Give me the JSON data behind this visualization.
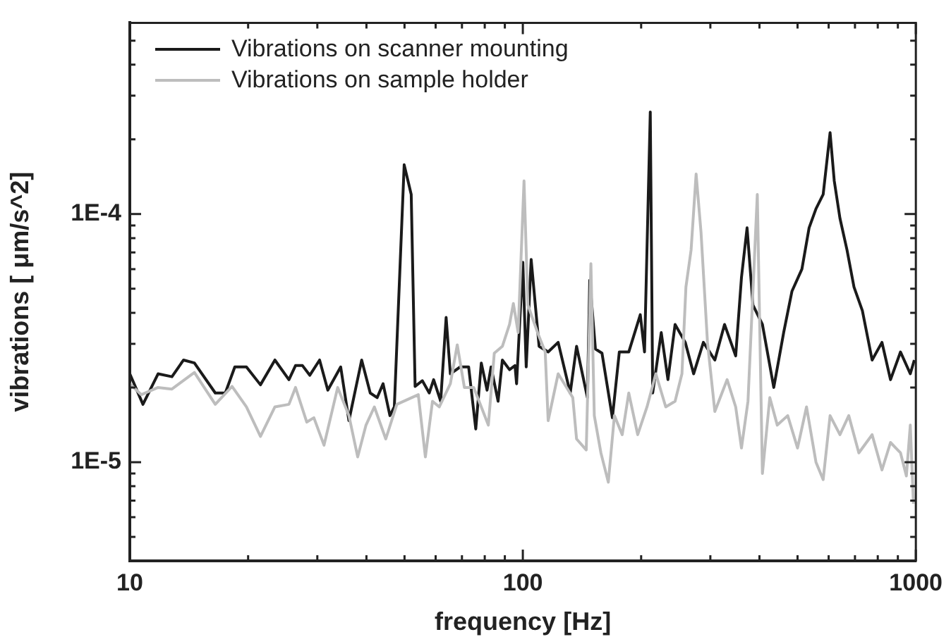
{
  "chart_data": {
    "type": "line",
    "xlabel": "frequency [Hz]",
    "ylabel": "vibrations [ μm/s^2]",
    "log": "xy",
    "grid": false,
    "legend": "top left",
    "marker": "none",
    "line_style": "solid",
    "xlim": [
      10,
      1000
    ],
    "ylim": [
      4e-06,
      0.00059
    ],
    "xticks": [
      10,
      {
        "value": 20,
        "label": null
      },
      {
        "value": 30,
        "label": null
      },
      {
        "value": 40,
        "label": null
      },
      {
        "value": 50,
        "label": null
      },
      {
        "value": 60,
        "label": null
      },
      {
        "value": 70,
        "label": null
      },
      {
        "value": 80,
        "label": null
      },
      {
        "value": 90,
        "label": null
      },
      100,
      {
        "value": 200,
        "label": null
      },
      {
        "value": 300,
        "label": null
      },
      {
        "value": 400,
        "label": null
      },
      {
        "value": 500,
        "label": null
      },
      {
        "value": 600,
        "label": null
      },
      {
        "value": 700,
        "label": null
      },
      {
        "value": 800,
        "label": null
      },
      {
        "value": 900,
        "label": null
      },
      1000
    ],
    "yticks": [
      {
        "value": 5e-06,
        "label": null
      },
      {
        "value": 6e-06,
        "label": null
      },
      {
        "value": 7e-06,
        "label": null
      },
      {
        "value": 8e-06,
        "label": null
      },
      {
        "value": 9e-06,
        "label": null
      },
      {
        "value": 1e-05,
        "label": "1E-5"
      },
      {
        "value": 2e-05,
        "label": null
      },
      {
        "value": 3e-05,
        "label": null
      },
      {
        "value": 4e-05,
        "label": null
      },
      {
        "value": 5e-05,
        "label": null
      },
      {
        "value": 6e-05,
        "label": null
      },
      {
        "value": 7e-05,
        "label": null
      },
      {
        "value": 8e-05,
        "label": null
      },
      {
        "value": 9e-05,
        "label": null
      },
      {
        "value": 0.0001,
        "label": "1E-4"
      },
      {
        "value": 0.0002,
        "label": null
      },
      {
        "value": 0.0003,
        "label": null
      },
      {
        "value": 0.0004,
        "label": null
      },
      {
        "value": 0.0005,
        "label": null
      }
    ],
    "series": [
      {
        "name": "Vibrations on sample holder",
        "color": "#bdbdbd",
        "x": [
          10,
          10.7,
          11.8,
          12.8,
          14.6,
          16.5,
          18.2,
          19.8,
          21.5,
          23.4,
          25.4,
          26.4,
          28.2,
          29.4,
          31.2,
          33.8,
          36.1,
          38.0,
          39.9,
          41.9,
          44.8,
          47.8,
          54.2,
          56.5,
          58.9,
          61.3,
          65.4,
          68.1,
          71.0,
          75.0,
          78.4,
          81.7,
          84.6,
          88.7,
          92.5,
          94.6,
          97.3,
          100.7,
          103,
          109,
          114,
          116,
          123,
          134,
          137,
          145,
          149,
          152,
          158,
          165,
          171,
          179,
          186,
          196,
          207,
          218,
          231,
          244,
          254,
          260,
          268,
          276,
          284,
          295,
          308,
          331,
          348,
          360,
          374,
          395,
          407,
          425,
          444,
          472,
          500,
          527,
          557,
          581,
          605,
          641,
          675,
          716,
          774,
          820,
          862,
          914,
          946,
          968,
          986
        ],
        "values": [
          2.07e-05,
          1.87e-05,
          2e-05,
          1.97e-05,
          2.3e-05,
          1.71e-05,
          2.02e-05,
          1.67e-05,
          1.27e-05,
          1.67e-05,
          1.71e-05,
          2e-05,
          1.45e-05,
          1.51e-05,
          1.17e-05,
          2e-05,
          1.54e-05,
          1.05e-05,
          1.41e-05,
          1.67e-05,
          1.24e-05,
          1.71e-05,
          1.87e-05,
          1.05e-05,
          1.76e-05,
          1.67e-05,
          2.07e-05,
          2.97e-05,
          2e-05,
          2e-05,
          1.67e-05,
          1.41e-05,
          2.75e-05,
          2.93e-05,
          3.59e-05,
          4.36e-05,
          3.33e-05,
          0.000136,
          4.3e-05,
          3.33e-05,
          2.78e-05,
          1.47e-05,
          2.27e-05,
          1.82e-05,
          1.24e-05,
          1.12e-05,
          6.31e-05,
          1.54e-05,
          1.09e-05,
          8.3e-06,
          1.54e-05,
          1.29e-05,
          1.9e-05,
          1.29e-05,
          1.67e-05,
          2.27e-05,
          1.67e-05,
          1.76e-05,
          2.27e-05,
          5.08e-05,
          7.17e-05,
          0.000145,
          8.47e-05,
          3.04e-05,
          1.6e-05,
          2.15e-05,
          1.67e-05,
          1.14e-05,
          1.76e-05,
          0.00012,
          9e-06,
          1.82e-05,
          1.41e-05,
          1.54e-05,
          1.14e-05,
          1.67e-05,
          1e-05,
          8.5e-06,
          1.54e-05,
          1.29e-05,
          1.54e-05,
          1.09e-05,
          1.29e-05,
          9.3e-06,
          1.2e-05,
          1.09e-05,
          8.8e-06,
          1.41e-05,
          6.8e-06
        ]
      },
      {
        "name": "Vibrations on scanner mounting",
        "color": "#1a1a1a",
        "x": [
          10,
          10.8,
          11.8,
          12.8,
          13.7,
          14.6,
          16.5,
          17.5,
          18.5,
          19.8,
          21.5,
          23.4,
          25.4,
          26.4,
          27.5,
          28.7,
          30.4,
          31.9,
          34.4,
          36.1,
          38.9,
          40.9,
          42.6,
          44.1,
          45.9,
          47.1,
          49.9,
          52.0,
          53.2,
          55.5,
          57.8,
          59.3,
          61.8,
          63.8,
          65.4,
          69.3,
          72.8,
          75.9,
          78.4,
          81.1,
          83.0,
          86.5,
          88.7,
          92.5,
          95.5,
          96.4,
          100,
          102,
          105,
          110,
          116,
          123,
          132,
          137,
          146,
          148,
          153,
          159,
          169,
          176,
          186,
          199,
          204,
          211,
          214,
          225,
          234,
          244,
          259,
          272,
          288,
          308,
          326,
          348,
          360,
          372,
          385,
          407,
          435,
          461,
          484,
          513,
          535,
          557,
          581,
          605,
          620,
          641,
          668,
          696,
          731,
          774,
          820,
          862,
          914,
          968,
          991
        ],
        "values": [
          2.27e-05,
          1.71e-05,
          2.27e-05,
          2.21e-05,
          2.58e-05,
          2.51e-05,
          1.9e-05,
          1.9e-05,
          2.42e-05,
          2.42e-05,
          2.05e-05,
          2.58e-05,
          2.15e-05,
          2.45e-05,
          2.45e-05,
          2.24e-05,
          2.58e-05,
          1.95e-05,
          2.42e-05,
          1.47e-05,
          2.58e-05,
          1.9e-05,
          1.82e-05,
          2.07e-05,
          1.54e-05,
          1.67e-05,
          0.000158,
          0.00012,
          2.02e-05,
          2.13e-05,
          1.9e-05,
          2.15e-05,
          1.76e-05,
          3.83e-05,
          2.27e-05,
          2.42e-05,
          2.42e-05,
          1.36e-05,
          2.51e-05,
          1.95e-05,
          2.42e-05,
          1.76e-05,
          2.58e-05,
          2.36e-05,
          2.45e-05,
          2.07e-05,
          6.39e-05,
          2.42e-05,
          6.56e-05,
          2.93e-05,
          2.78e-05,
          3.04e-05,
          1.9e-05,
          2.93e-05,
          1.82e-05,
          5.41e-05,
          2.86e-05,
          2.75e-05,
          1.51e-05,
          2.78e-05,
          2.78e-05,
          3.93e-05,
          2.78e-05,
          0.000258,
          1.9e-05,
          3.33e-05,
          2.15e-05,
          3.59e-05,
          3.04e-05,
          2.27e-05,
          3.04e-05,
          2.58e-05,
          3.59e-05,
          2.68e-05,
          5.55e-05,
          8.8e-05,
          4.3e-05,
          3.59e-05,
          2e-05,
          3.33e-05,
          4.89e-05,
          6e-05,
          8.8e-05,
          0.000105,
          0.00012,
          0.000213,
          0.000136,
          9.62e-05,
          7.17e-05,
          5.08e-05,
          4.08e-05,
          2.58e-05,
          3.04e-05,
          2.15e-05,
          2.78e-05,
          2.27e-05,
          2.58e-05
        ]
      }
    ]
  }
}
